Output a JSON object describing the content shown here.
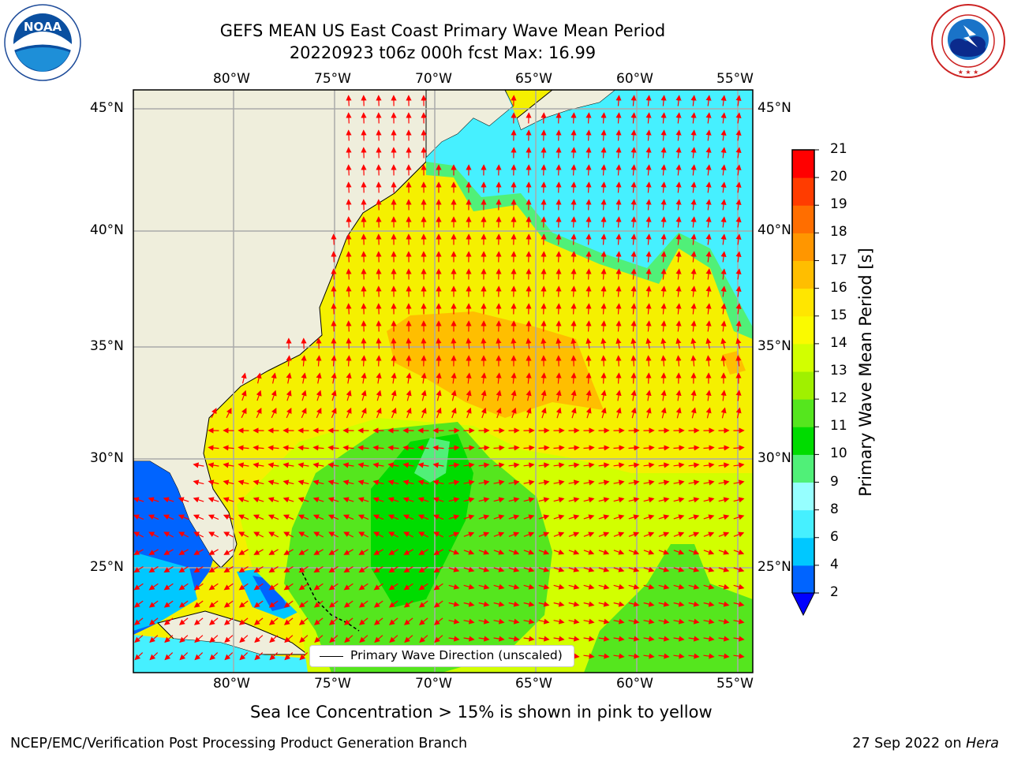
{
  "title_line1": "GEFS MEAN US East Coast Primary Wave Mean Period",
  "title_line2": "20220923 t06z 000h fcst   Max: 16.99",
  "logos": {
    "left": {
      "name": "noaa-logo",
      "text": "NOAA",
      "ring_text": "NATIONAL OCEANIC AND ATMOSPHERIC ADMINISTRATION · U.S. DEPARTMENT OF COMMERCE"
    },
    "right": {
      "name": "nws-logo",
      "ring_text": "NATIONAL WEATHER SERVICE"
    }
  },
  "map": {
    "lon_range": [
      -85,
      -54
    ],
    "lat_range": [
      20.5,
      45.8
    ],
    "lon_ticks": [
      "80°W",
      "75°W",
      "70°W",
      "65°W",
      "60°W",
      "55°W"
    ],
    "lat_ticks": [
      "45°N",
      "40°N",
      "35°N",
      "30°N",
      "25°N"
    ],
    "lat_ticks_right": [
      "45°N",
      "40°N",
      "35°N",
      "30°N",
      "25°N"
    ],
    "gridlines": true,
    "legend_label": "Primary Wave Direction (unscaled)",
    "legend_placement": "bottom-center"
  },
  "colorbar": {
    "label": "Primary Wave Mean Period [s]",
    "ticks": [
      "2",
      "4",
      "6",
      "8",
      "9",
      "10",
      "11",
      "12",
      "13",
      "14",
      "15",
      "16",
      "17",
      "18",
      "19",
      "20",
      "21"
    ],
    "colors": [
      "#0064ff",
      "#00c8ff",
      "#46f0ff",
      "#96ffff",
      "#50f078",
      "#00dc00",
      "#55e61e",
      "#a0f000",
      "#d2ff00",
      "#fafa00",
      "#ffe600",
      "#ffbe00",
      "#ff9600",
      "#ff6e00",
      "#ff3c00",
      "#ff0000"
    ],
    "extend": "min",
    "under_color": "#0000ff",
    "orientation": "vertical"
  },
  "sea_ice_note": "Sea Ice Concentration > 15% is shown in pink to yellow",
  "footer_left": "NCEP/EMC/Verification Post Processing Product Generation Branch",
  "footer_right_date": "27 Sep 2022 on",
  "footer_right_machine": "Hera"
}
